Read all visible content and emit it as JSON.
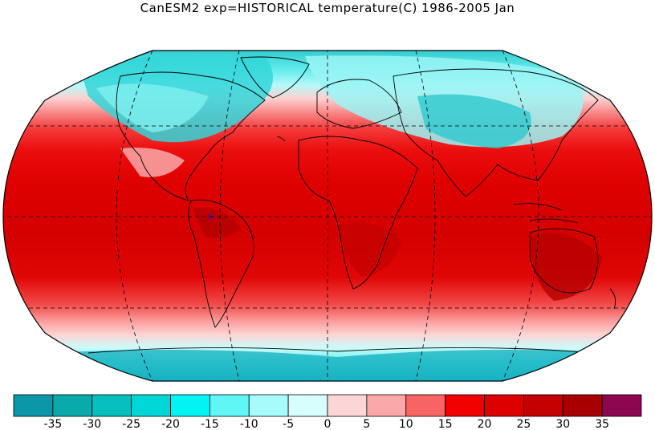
{
  "title": "CanESM2 exp=HISTORICAL temperature(C) 1986-2005 Jan",
  "legend": {
    "labels": [
      "-35",
      "-30",
      "-25",
      "-20",
      "-15",
      "-10",
      "-5",
      "0",
      "5",
      "10",
      "15",
      "20",
      "25",
      "30",
      "35"
    ],
    "colors": [
      "#0b97a8",
      "#0aa9ac",
      "#06bfbe",
      "#00d6d6",
      "#00f4f4",
      "#60f6f6",
      "#a8fbfb",
      "#d8fdfd",
      "#fcd6d6",
      "#fba8a8",
      "#f86464",
      "#f20000",
      "#dc0000",
      "#c40000",
      "#a80000",
      "#8c0650"
    ]
  },
  "map": {
    "projection": "Robinson",
    "graticule": "dashed",
    "field": "temperature(C)",
    "period": "1986-2005 Jan"
  }
}
